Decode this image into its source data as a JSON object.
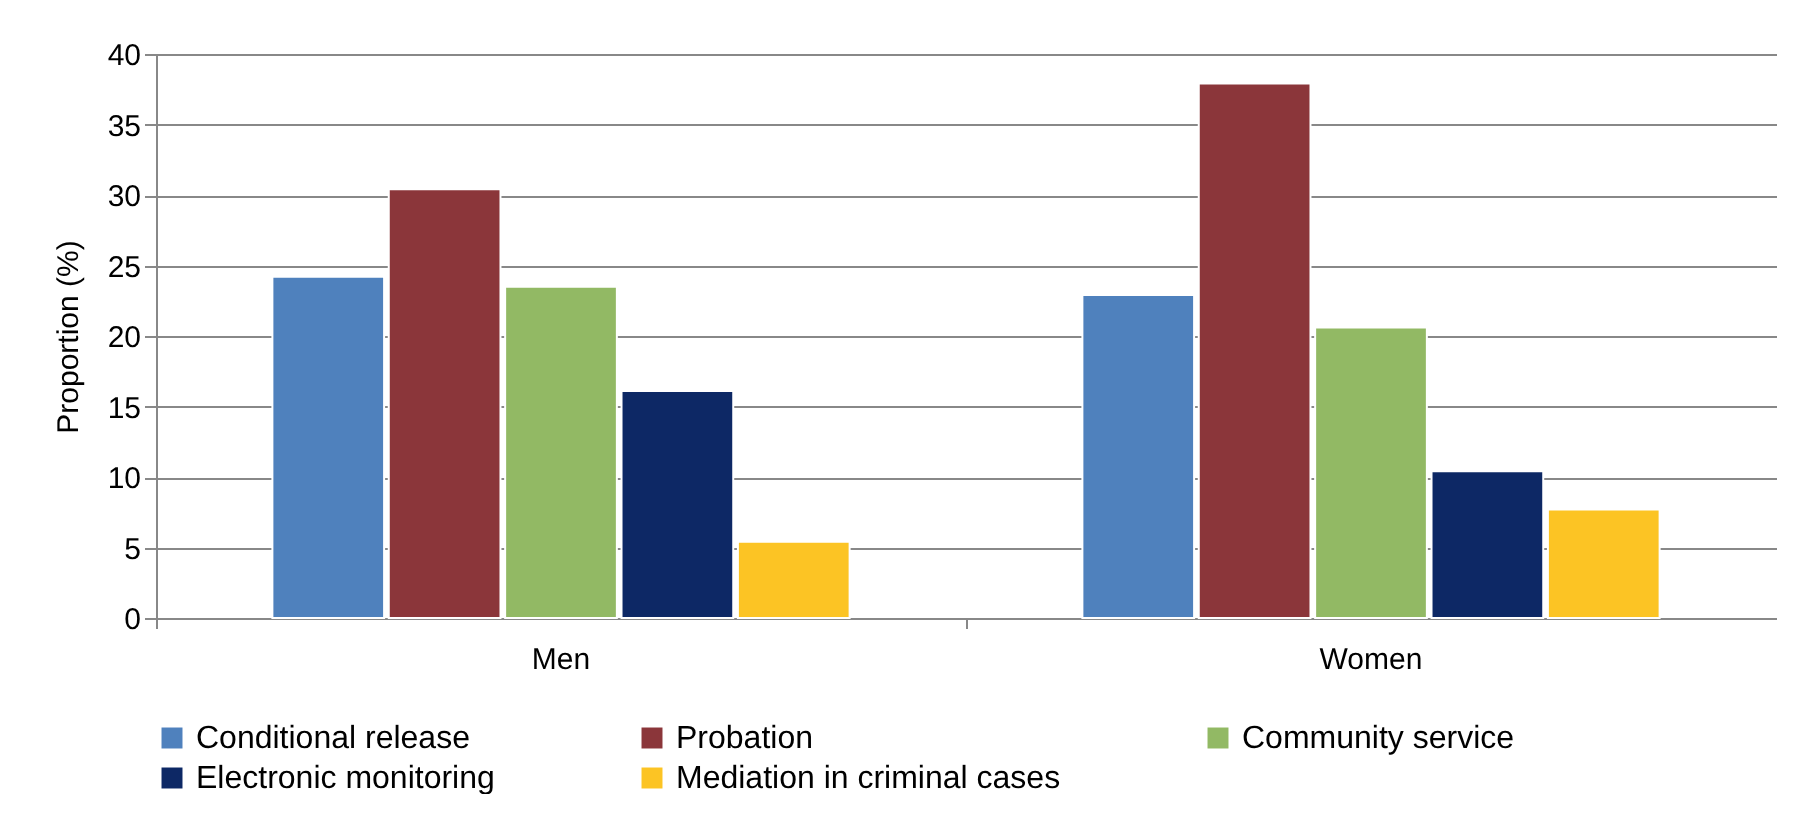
{
  "chart_data": {
    "type": "bar",
    "ylabel": "Proportion (%)",
    "categories": [
      "Men",
      "Women"
    ],
    "series": [
      {
        "name": "Conditional release",
        "color": "#4f81bd",
        "values": [
          24.2,
          22.9
        ]
      },
      {
        "name": "Probation",
        "color": "#8b363a",
        "values": [
          30.4,
          37.9
        ]
      },
      {
        "name": "Community service",
        "color": "#92b964",
        "values": [
          23.5,
          20.6
        ]
      },
      {
        "name": "Electronic monitoring",
        "color": "#0d2865",
        "values": [
          16.1,
          10.4
        ]
      },
      {
        "name": "Mediation in criminal cases",
        "color": "#fcc424",
        "values": [
          5.4,
          7.7
        ]
      }
    ],
    "ylim": [
      0,
      40
    ],
    "yticks": [
      0,
      5,
      10,
      15,
      20,
      25,
      30,
      35,
      40
    ],
    "grid": "y",
    "legend": "bottom"
  }
}
